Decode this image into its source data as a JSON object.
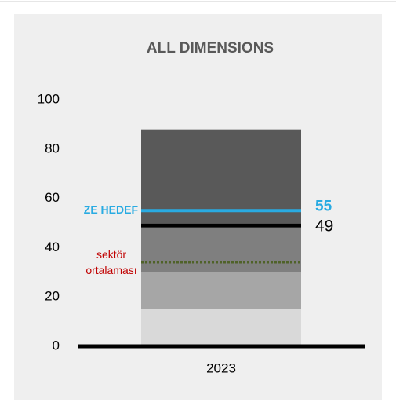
{
  "chart_data": {
    "type": "bullet",
    "title": "ALL DIMENSIONS",
    "categories": [
      "2023"
    ],
    "bands": {
      "values": [
        15,
        15,
        20,
        38
      ],
      "colors": [
        "#d9d9d9",
        "#a6a6a6",
        "#7f7f7f",
        "#595959"
      ]
    },
    "value": 49,
    "value_color": "#000000",
    "target": 55,
    "target_label": "ZE HEDEF",
    "target_color": "#29abe2",
    "sector_average": 34,
    "sector_label": [
      "sektör",
      "ortalaması"
    ],
    "sector_color": "#4f6228",
    "sector_label_color": "#c00000",
    "ylim": [
      0,
      100
    ],
    "yticks": [
      0,
      20,
      40,
      60,
      80,
      100
    ]
  }
}
